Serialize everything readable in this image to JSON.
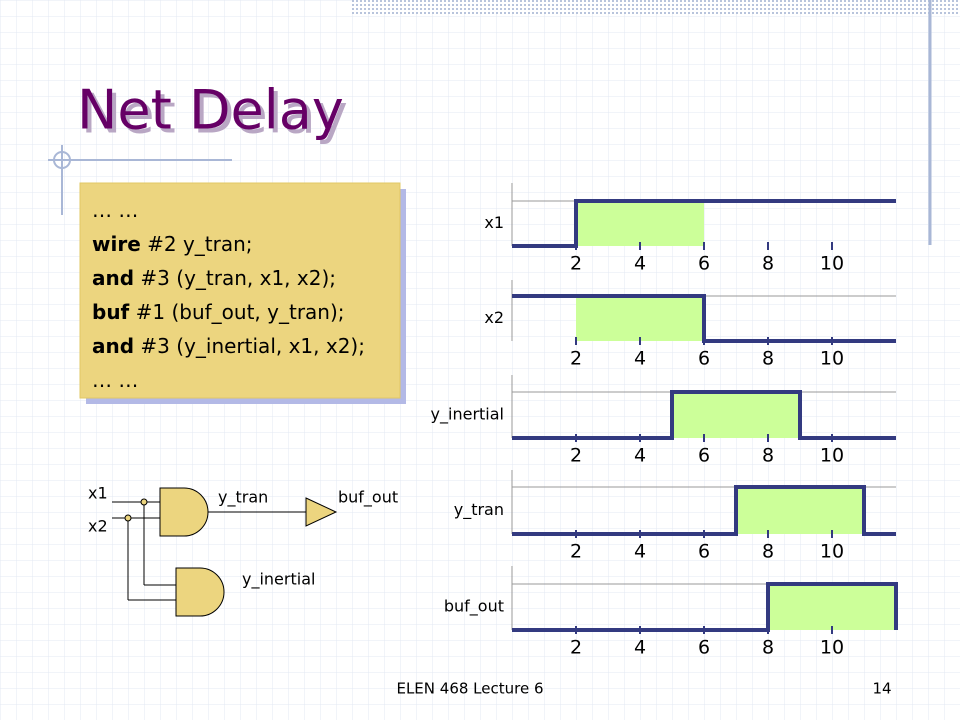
{
  "header": {
    "title": "Net Delay"
  },
  "code": {
    "lines": [
      {
        "text": "… …"
      },
      {
        "keyword": "wire",
        "text": " #2 y_tran;"
      },
      {
        "keyword": "and",
        "text": " #3 (y_tran, x1, x2);"
      },
      {
        "keyword": "buf",
        "text": " #1 (buf_out, y_tran);"
      },
      {
        "keyword": "and",
        "text": " #3 (y_inertial, x1, x2);"
      },
      {
        "text": "… …"
      }
    ]
  },
  "circuit": {
    "labels": [
      "x1",
      "x2",
      "y_tran",
      "buf_out",
      "y_inertial"
    ]
  },
  "timing": {
    "ticks": [
      "2",
      "4",
      "6",
      "8",
      "10"
    ],
    "signals": [
      "x1",
      "x2",
      "y_inertial",
      "y_tran",
      "buf_out"
    ]
  },
  "footer": {
    "course": "ELEN 468 Lecture 6",
    "page": "14"
  }
}
